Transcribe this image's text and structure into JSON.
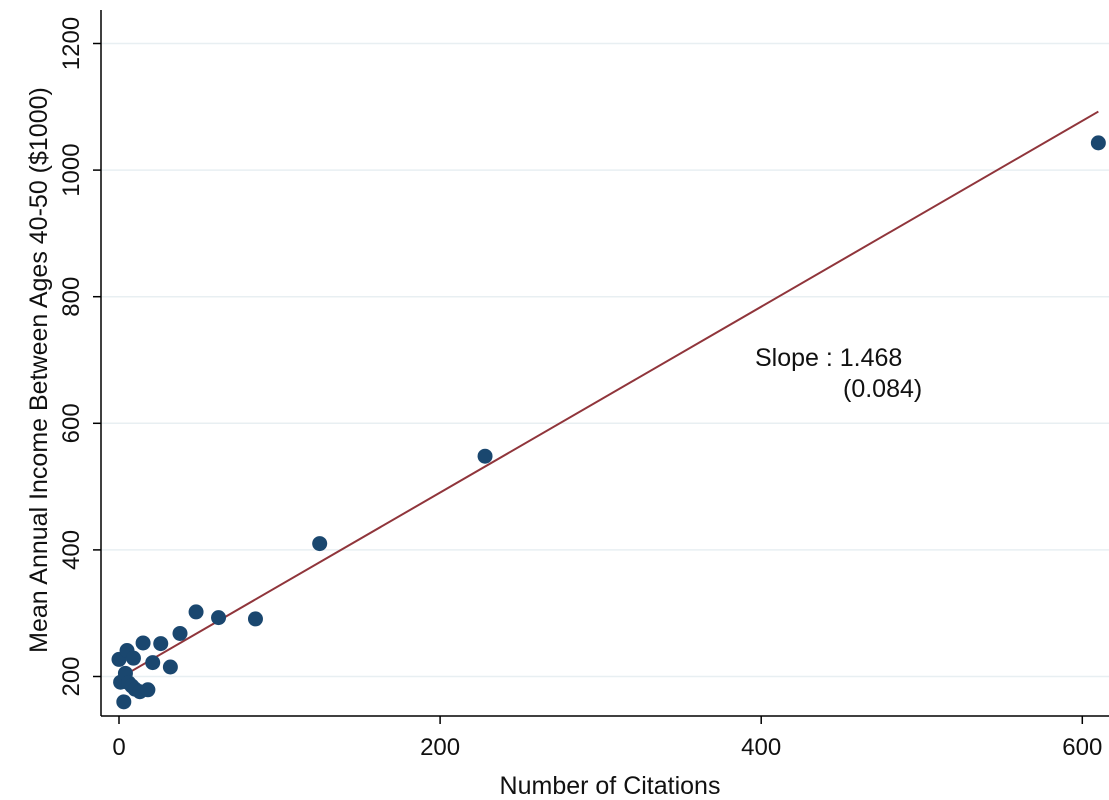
{
  "chart_data": {
    "type": "scatter",
    "title": "",
    "xlabel": "Number of Citations",
    "ylabel": "Mean Annual Income Between Ages 40-50 ($1000)",
    "xlim": [
      0,
      610
    ],
    "ylim": [
      150,
      1200
    ],
    "x_ticks": [
      0,
      200,
      400,
      600
    ],
    "y_ticks": [
      200,
      400,
      600,
      800,
      1000,
      1200
    ],
    "grid": "horizontal",
    "colors": {
      "points": "#1a476f",
      "fit_line": "#90353b",
      "grid": "#e8eff2",
      "axes": "#000000"
    },
    "points": [
      {
        "x": 0,
        "y": 227
      },
      {
        "x": 1,
        "y": 191
      },
      {
        "x": 3,
        "y": 160
      },
      {
        "x": 4,
        "y": 205
      },
      {
        "x": 5,
        "y": 241
      },
      {
        "x": 6,
        "y": 190
      },
      {
        "x": 8,
        "y": 185
      },
      {
        "x": 9,
        "y": 229
      },
      {
        "x": 10,
        "y": 180
      },
      {
        "x": 13,
        "y": 176
      },
      {
        "x": 15,
        "y": 253
      },
      {
        "x": 18,
        "y": 179
      },
      {
        "x": 21,
        "y": 222
      },
      {
        "x": 26,
        "y": 252
      },
      {
        "x": 32,
        "y": 215
      },
      {
        "x": 38,
        "y": 268
      },
      {
        "x": 48,
        "y": 302
      },
      {
        "x": 62,
        "y": 293
      },
      {
        "x": 85,
        "y": 291
      },
      {
        "x": 125,
        "y": 410
      },
      {
        "x": 228,
        "y": 548
      },
      {
        "x": 610,
        "y": 1043
      }
    ],
    "fit_line": {
      "x0": 0,
      "x1": 610,
      "intercept": 197,
      "slope": 1.468
    },
    "annotation": {
      "line1": "Slope : 1.468",
      "line2": "(0.084)"
    }
  }
}
